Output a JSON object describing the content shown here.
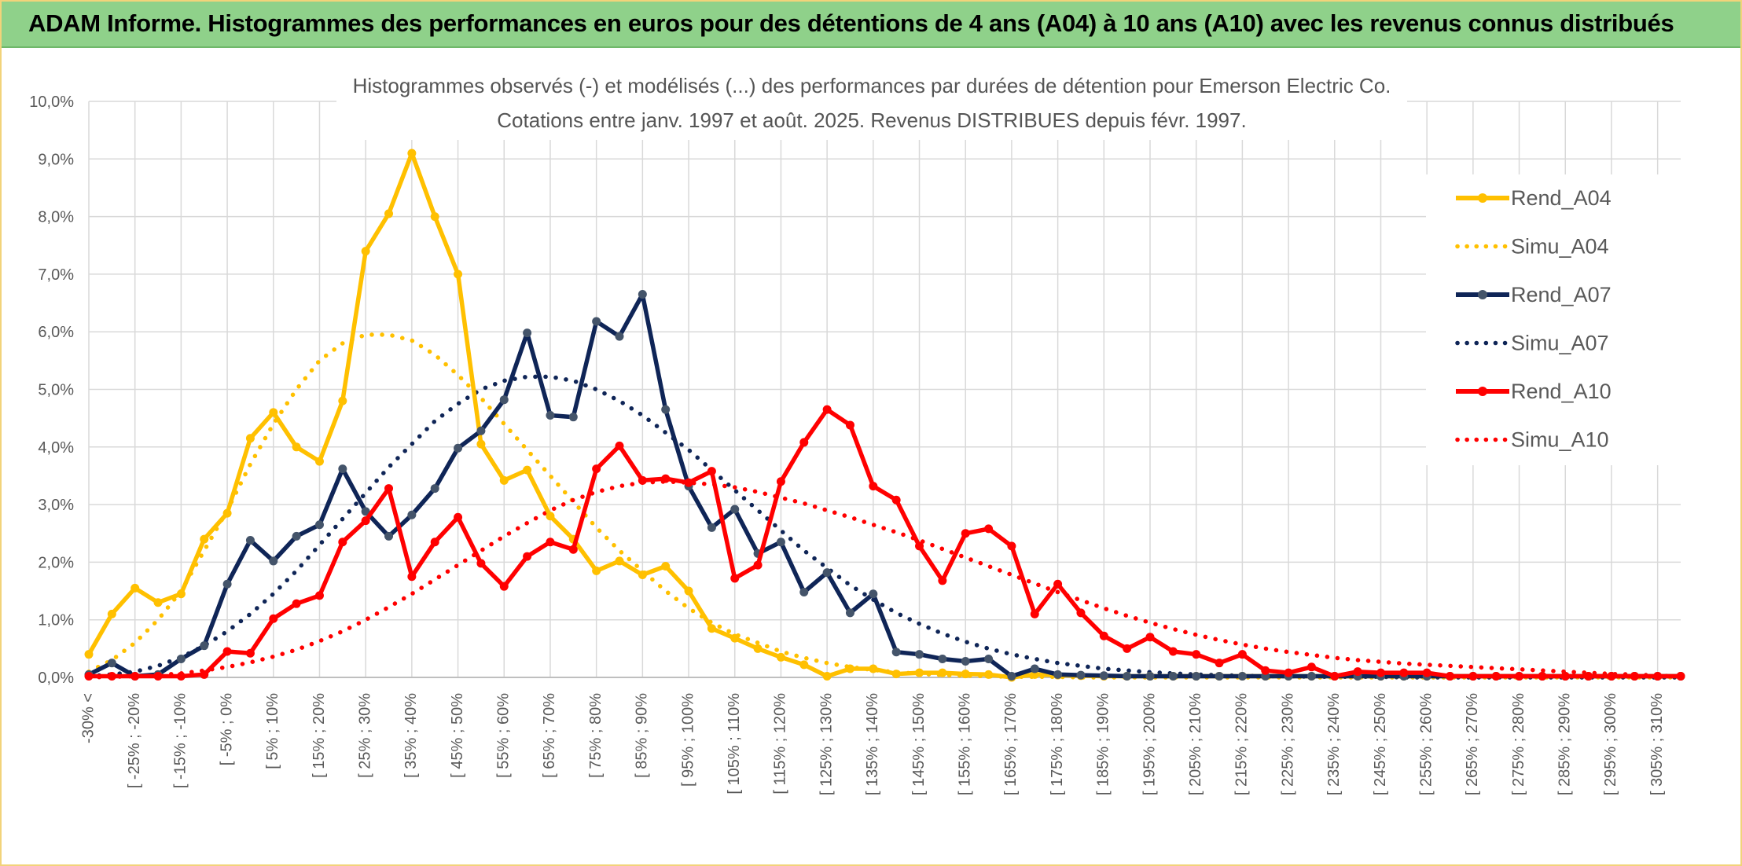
{
  "banner": {
    "title": "ADAM Informe. Histogrammes des performances en euros pour des détentions de 4 ans (A04) à 10 ans (A10) avec les revenus connus distribués"
  },
  "chart_data": {
    "type": "line",
    "title_lines": [
      "Histogrammes observés (-) et modélisés (...) des performances par durées de détention pour Emerson Electric Co.",
      "Cotations entre janv. 1997 et août. 2025. Revenus DISTRIBUES depuis févr. 1997."
    ],
    "y_ticks": [
      "0,0%",
      "1,0%",
      "2,0%",
      "3,0%",
      "4,0%",
      "5,0%",
      "6,0%",
      "7,0%",
      "8,0%",
      "9,0%",
      "10,0%"
    ],
    "ylim": [
      0,
      10
    ],
    "grid": true,
    "legend_position": "right",
    "x_labels": [
      "-30% <",
      "[ -25% ; -20%",
      "[ -15% ; -10%",
      "[ -5% ; 0%",
      "[ 5% ; 10%",
      "[ 15% ; 20%",
      "[ 25% ; 30%",
      "[ 35% ; 40%",
      "[ 45% ; 50%",
      "[ 55% ; 60%",
      "[ 65% ; 70%",
      "[ 75% ; 80%",
      "[ 85% ; 90%",
      "[ 95% ; 100%",
      "[ 105% ; 110%",
      "[ 115% ; 120%",
      "[ 125% ; 130%",
      "[ 135% ; 140%",
      "[ 145% ; 150%",
      "[ 155% ; 160%",
      "[ 165% ; 170%",
      "[ 175% ; 180%",
      "[ 185% ; 190%",
      "[ 195% ; 200%",
      "[ 205% ; 210%",
      "[ 215% ; 220%",
      "[ 225% ; 230%",
      "[ 235% ; 240%",
      "[ 245% ; 250%",
      "[ 255% ; 260%",
      "[ 265% ; 270%",
      "[ 275% ; 280%",
      "[ 285% ; 290%",
      "[ 295% ; 300%",
      "[ 305% ; 310%"
    ],
    "series": [
      {
        "name": "Rend_A04",
        "style": "solid",
        "color": "#ffc000",
        "values": [
          0.4,
          1.1,
          1.55,
          1.3,
          1.45,
          2.4,
          2.85,
          4.15,
          4.6,
          4.0,
          3.75,
          4.8,
          7.4,
          8.05,
          9.1,
          8.0,
          7.0,
          4.05,
          3.42,
          3.6,
          2.8,
          2.4,
          1.85,
          2.02,
          1.78,
          1.93,
          1.5,
          0.85,
          0.68,
          0.5,
          0.35,
          0.22,
          0.02,
          0.15,
          0.15,
          0.06,
          0.08,
          0.08,
          0.06,
          0.05,
          0.0,
          0.05,
          0.04,
          0.03,
          0.02,
          0.02,
          0.02,
          0.02,
          0.02,
          0.02,
          0.02,
          0.02,
          0.02,
          0.02,
          0.02,
          0.02,
          0.02,
          0.02,
          0.02,
          0.02,
          0.02,
          0.02,
          0.02,
          0.02,
          0.02,
          0.02,
          0.02,
          0.02,
          0.02,
          0.02
        ]
      },
      {
        "name": "Simu_A04",
        "style": "dotted",
        "color": "#ffc000",
        "values": [
          0.1,
          0.3,
          0.6,
          1.0,
          1.5,
          2.2,
          2.9,
          3.7,
          4.4,
          5.0,
          5.5,
          5.8,
          5.95,
          5.95,
          5.85,
          5.6,
          5.25,
          4.85,
          4.4,
          3.95,
          3.5,
          3.05,
          2.6,
          2.2,
          1.85,
          1.5,
          1.2,
          0.95,
          0.75,
          0.6,
          0.45,
          0.34,
          0.25,
          0.18,
          0.13,
          0.09,
          0.06,
          0.04,
          0.03,
          0.02,
          0.01,
          0.01,
          0.01,
          0.0,
          0.0,
          0.0,
          0.0,
          0.0,
          0.0,
          0.0,
          0.0,
          0.0,
          0.0,
          0.0,
          0.0,
          0.0,
          0.0,
          0.0,
          0.0,
          0.0,
          0.0,
          0.0,
          0.0,
          0.0,
          0.0,
          0.0,
          0.0,
          0.0,
          0.0,
          0.0
        ]
      },
      {
        "name": "Rend_A07",
        "style": "solid",
        "color": "#0f2557",
        "values": [
          0.05,
          0.25,
          0.02,
          0.05,
          0.32,
          0.55,
          1.62,
          2.38,
          2.02,
          2.45,
          2.65,
          3.62,
          2.88,
          2.45,
          2.82,
          3.28,
          3.98,
          4.28,
          4.82,
          5.98,
          4.55,
          4.52,
          6.18,
          5.92,
          6.65,
          4.65,
          3.32,
          2.6,
          2.92,
          2.15,
          2.35,
          1.48,
          1.82,
          1.12,
          1.45,
          0.44,
          0.4,
          0.32,
          0.28,
          0.32,
          0.02,
          0.15,
          0.05,
          0.04,
          0.03,
          0.02,
          0.02,
          0.02,
          0.02,
          0.02,
          0.02,
          0.02,
          0.02,
          0.02,
          0.02,
          0.02,
          0.02,
          0.02,
          0.02,
          0.02,
          0.02,
          0.02,
          0.02,
          0.02,
          0.02,
          0.02,
          0.02,
          0.02,
          0.02,
          0.02
        ]
      },
      {
        "name": "Simu_A07",
        "style": "dotted",
        "color": "#0f2557",
        "values": [
          0.02,
          0.05,
          0.1,
          0.2,
          0.35,
          0.55,
          0.8,
          1.1,
          1.45,
          1.85,
          2.3,
          2.75,
          3.2,
          3.65,
          4.05,
          4.45,
          4.75,
          5.0,
          5.15,
          5.22,
          5.22,
          5.15,
          5.0,
          4.8,
          4.55,
          4.25,
          3.95,
          3.6,
          3.25,
          2.9,
          2.55,
          2.2,
          1.9,
          1.6,
          1.35,
          1.12,
          0.93,
          0.76,
          0.62,
          0.5,
          0.4,
          0.32,
          0.25,
          0.2,
          0.15,
          0.12,
          0.09,
          0.07,
          0.05,
          0.04,
          0.03,
          0.02,
          0.02,
          0.01,
          0.01,
          0.01,
          0.01,
          0.0,
          0.0,
          0.0,
          0.0,
          0.0,
          0.0,
          0.0,
          0.0,
          0.0,
          0.0,
          0.0,
          0.0,
          0.0
        ]
      },
      {
        "name": "Rend_A10",
        "style": "solid",
        "color": "#ff0000",
        "values": [
          0.02,
          0.02,
          0.02,
          0.02,
          0.02,
          0.05,
          0.45,
          0.42,
          1.02,
          1.28,
          1.42,
          2.35,
          2.72,
          3.28,
          1.75,
          2.35,
          2.78,
          1.98,
          1.58,
          2.1,
          2.35,
          2.22,
          3.62,
          4.02,
          3.42,
          3.45,
          3.38,
          3.58,
          1.72,
          1.95,
          3.4,
          4.08,
          4.65,
          4.38,
          3.32,
          3.08,
          2.28,
          1.68,
          2.5,
          2.58,
          2.28,
          1.1,
          1.62,
          1.12,
          0.72,
          0.5,
          0.7,
          0.45,
          0.4,
          0.25,
          0.4,
          0.12,
          0.08,
          0.18,
          0.02,
          0.1,
          0.08,
          0.08,
          0.08,
          0.02,
          0.02,
          0.02,
          0.02,
          0.02,
          0.02,
          0.02,
          0.02,
          0.02,
          0.02,
          0.02
        ]
      },
      {
        "name": "Simu_A10",
        "style": "dotted",
        "color": "#ff0000",
        "values": [
          0.0,
          0.01,
          0.02,
          0.04,
          0.07,
          0.12,
          0.18,
          0.26,
          0.36,
          0.48,
          0.63,
          0.8,
          1.0,
          1.22,
          1.45,
          1.7,
          1.95,
          2.2,
          2.45,
          2.68,
          2.9,
          3.08,
          3.22,
          3.32,
          3.38,
          3.4,
          3.38,
          3.35,
          3.3,
          3.22,
          3.12,
          3.02,
          2.9,
          2.78,
          2.65,
          2.52,
          2.38,
          2.23,
          2.08,
          1.93,
          1.78,
          1.63,
          1.48,
          1.34,
          1.2,
          1.07,
          0.95,
          0.84,
          0.74,
          0.65,
          0.57,
          0.5,
          0.44,
          0.39,
          0.34,
          0.3,
          0.27,
          0.24,
          0.22,
          0.2,
          0.18,
          0.16,
          0.14,
          0.12,
          0.1,
          0.08,
          0.06,
          0.05,
          0.03,
          0.02
        ]
      }
    ]
  }
}
